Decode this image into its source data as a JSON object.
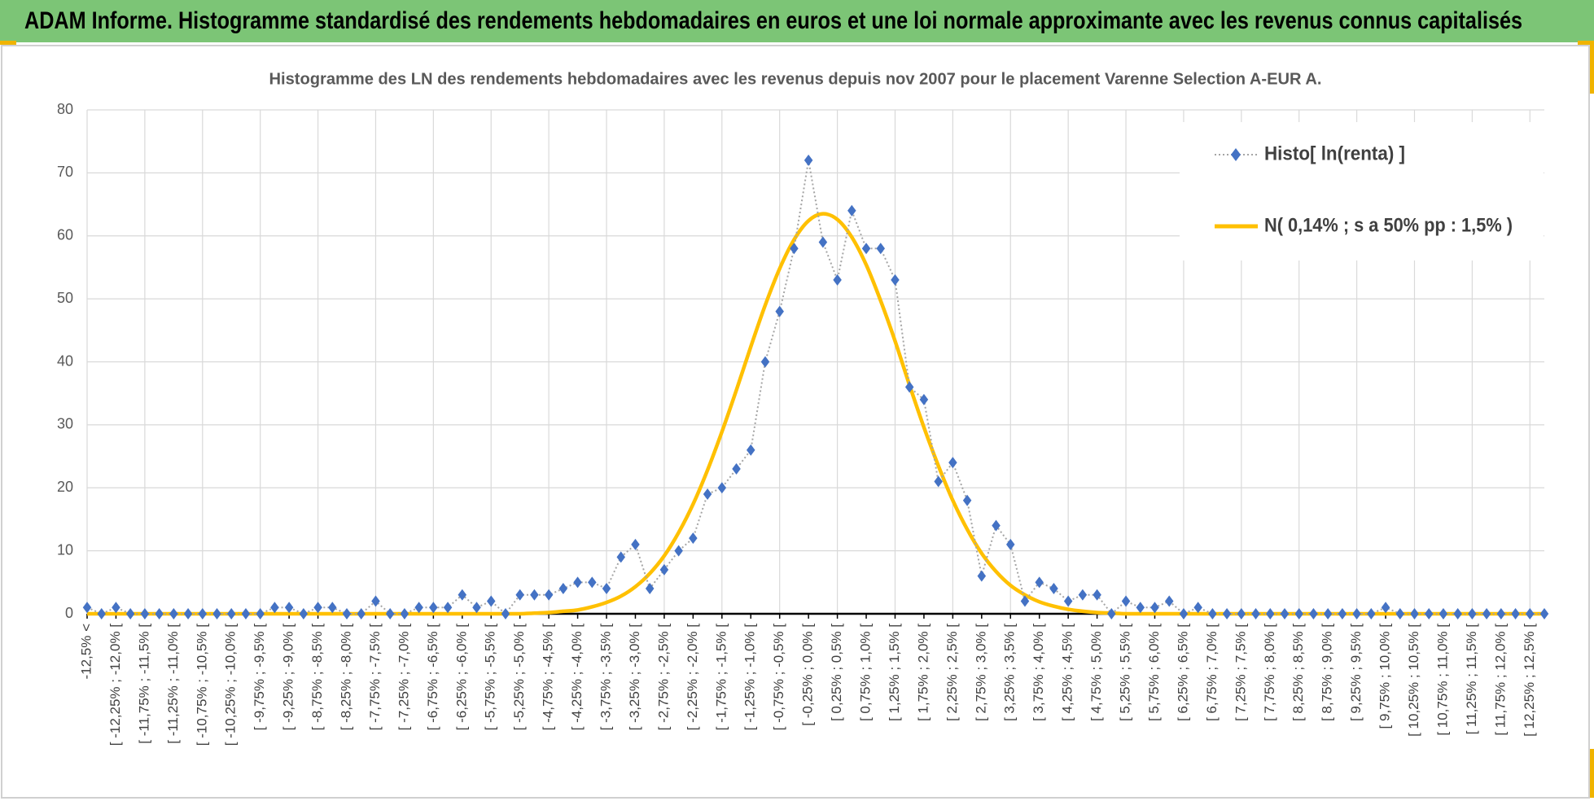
{
  "header": {
    "title": "ADAM Informe. Histogramme standardisé des rendements hebdomadaires en euros et une loi normale approximante avec les revenus connus capitalisés"
  },
  "chart_data": {
    "type": "line",
    "title": "Histogramme  des LN des rendements  hebdomadaires avec les revenus depuis nov 2007 pour le placement Varenne Selection A-EUR A.",
    "categories": [
      "-12,5% <",
      null,
      "[ -12,25% ; -12,0% [",
      null,
      "[ -11,75% ; -11,5% [",
      null,
      "[ -11,25% ; -11,0% [",
      null,
      "[ -10,75% ; -10,5% [",
      null,
      "[ -10,25% ; -10,0% [",
      null,
      "[ -9,75% ; -9,5% [",
      null,
      "[ -9,25% ; -9,0% [",
      null,
      "[ -8,75% ; -8,5% [",
      null,
      "[ -8,25% ; -8,0% [",
      null,
      "[ -7,75% ; -7,5% [",
      null,
      "[ -7,25% ; -7,0% [",
      null,
      "[ -6,75% ; -6,5% [",
      null,
      "[ -6,25% ; -6,0% [",
      null,
      "[ -5,75% ; -5,5% [",
      null,
      "[ -5,25% ; -5,0% [",
      null,
      "[ -4,75% ; -4,5% [",
      null,
      "[ -4,25% ; -4,0% [",
      null,
      "[ -3,75% ; -3,5% [",
      null,
      "[ -3,25% ; -3,0% [",
      null,
      "[ -2,75% ; -2,5% [",
      null,
      "[ -2,25% ; -2,0% [",
      null,
      "[ -1,75% ; -1,5% [",
      null,
      "[ -1,25% ; -1,0% [",
      null,
      "[ -0,75% ; -0,5% [",
      null,
      "[ -0,25% ; 0,0% [",
      null,
      "[ 0,25% ; 0,5% [",
      null,
      "[ 0,75% ; 1,0% [",
      null,
      "[ 1,25% ; 1,5% [",
      null,
      "[ 1,75% ; 2,0% [",
      null,
      "[ 2,25% ; 2,5% [",
      null,
      "[ 2,75% ; 3,0% [",
      null,
      "[ 3,25% ; 3,5% [",
      null,
      "[ 3,75% ; 4,0% [",
      null,
      "[ 4,25% ; 4,5% [",
      null,
      "[ 4,75% ; 5,0% [",
      null,
      "[ 5,25% ; 5,5% [",
      null,
      "[ 5,75% ; 6,0% [",
      null,
      "[ 6,25% ; 6,5% [",
      null,
      "[ 6,75% ; 7,0% [",
      null,
      "[ 7,25% ; 7,5% [",
      null,
      "[ 7,75% ; 8,0% [",
      null,
      "[ 8,25% ; 8,5% [",
      null,
      "[ 8,75% ; 9,0% [",
      null,
      "[ 9,25% ; 9,5% [",
      null,
      "[ 9,75% ; 10,0% [",
      null,
      "[ 10,25% ; 10,5% [",
      null,
      "[ 10,75% ; 11,0% [",
      null,
      "[ 11,25% ; 11,5% [",
      null,
      "[ 11,75% ; 12,0% [",
      null,
      "[ 12,25% ; 12,5% [",
      null
    ],
    "series": [
      {
        "name": "Histo[ ln(renta) ]",
        "color": "#4472c4",
        "line_color": "#a5a5a5",
        "marker": "diamond",
        "values": [
          1,
          0,
          1,
          0,
          0,
          0,
          0,
          0,
          0,
          0,
          0,
          0,
          0,
          1,
          1,
          0,
          1,
          1,
          0,
          0,
          2,
          0,
          0,
          1,
          1,
          1,
          3,
          1,
          2,
          0,
          3,
          3,
          3,
          4,
          5,
          5,
          4,
          9,
          11,
          4,
          7,
          10,
          12,
          19,
          20,
          23,
          26,
          40,
          48,
          58,
          72,
          59,
          53,
          64,
          58,
          58,
          53,
          36,
          34,
          21,
          24,
          18,
          6,
          14,
          11,
          2,
          5,
          4,
          2,
          3,
          3,
          0,
          2,
          1,
          1,
          2,
          0,
          1,
          0,
          0,
          0,
          0,
          0,
          0,
          0,
          0,
          0,
          0,
          0,
          0,
          1,
          0,
          0,
          0,
          0,
          0,
          0,
          0,
          0,
          0,
          0,
          0
        ]
      },
      {
        "name": "N( 0,14% ; s a 50% pp : 1,5% )",
        "color": "#ffc000",
        "marker": "none",
        "values": [
          0,
          0,
          0,
          0,
          0,
          0,
          0,
          0,
          0,
          0,
          0,
          0,
          0,
          0,
          0,
          0,
          0,
          0,
          0,
          0,
          0,
          0,
          0,
          0,
          0,
          0,
          0,
          0,
          0,
          0,
          0,
          0.1,
          0.2,
          0.4,
          0.6,
          1.1,
          1.8,
          2.8,
          4.3,
          6.4,
          9.2,
          12.9,
          17.4,
          22.8,
          28.9,
          35.5,
          42.4,
          49.0,
          54.8,
          59.4,
          62.4,
          63.5,
          62.6,
          59.8,
          55.4,
          49.7,
          43.3,
          36.3,
          29.6,
          23.5,
          18.0,
          13.4,
          9.6,
          6.7,
          4.5,
          3.0,
          1.9,
          1.2,
          0.7,
          0.4,
          0.2,
          0.1,
          0,
          0,
          0,
          0,
          0,
          0,
          0,
          0,
          0,
          0,
          0,
          0,
          0,
          0,
          0,
          0,
          0,
          0,
          0,
          0,
          0,
          0,
          0,
          0,
          0,
          0,
          0,
          0,
          0,
          0
        ]
      }
    ],
    "ylim": [
      0,
      80
    ],
    "yticks": [
      0,
      10,
      20,
      30,
      40,
      50,
      60,
      70,
      80
    ],
    "grid": true,
    "legend": "top-right"
  }
}
